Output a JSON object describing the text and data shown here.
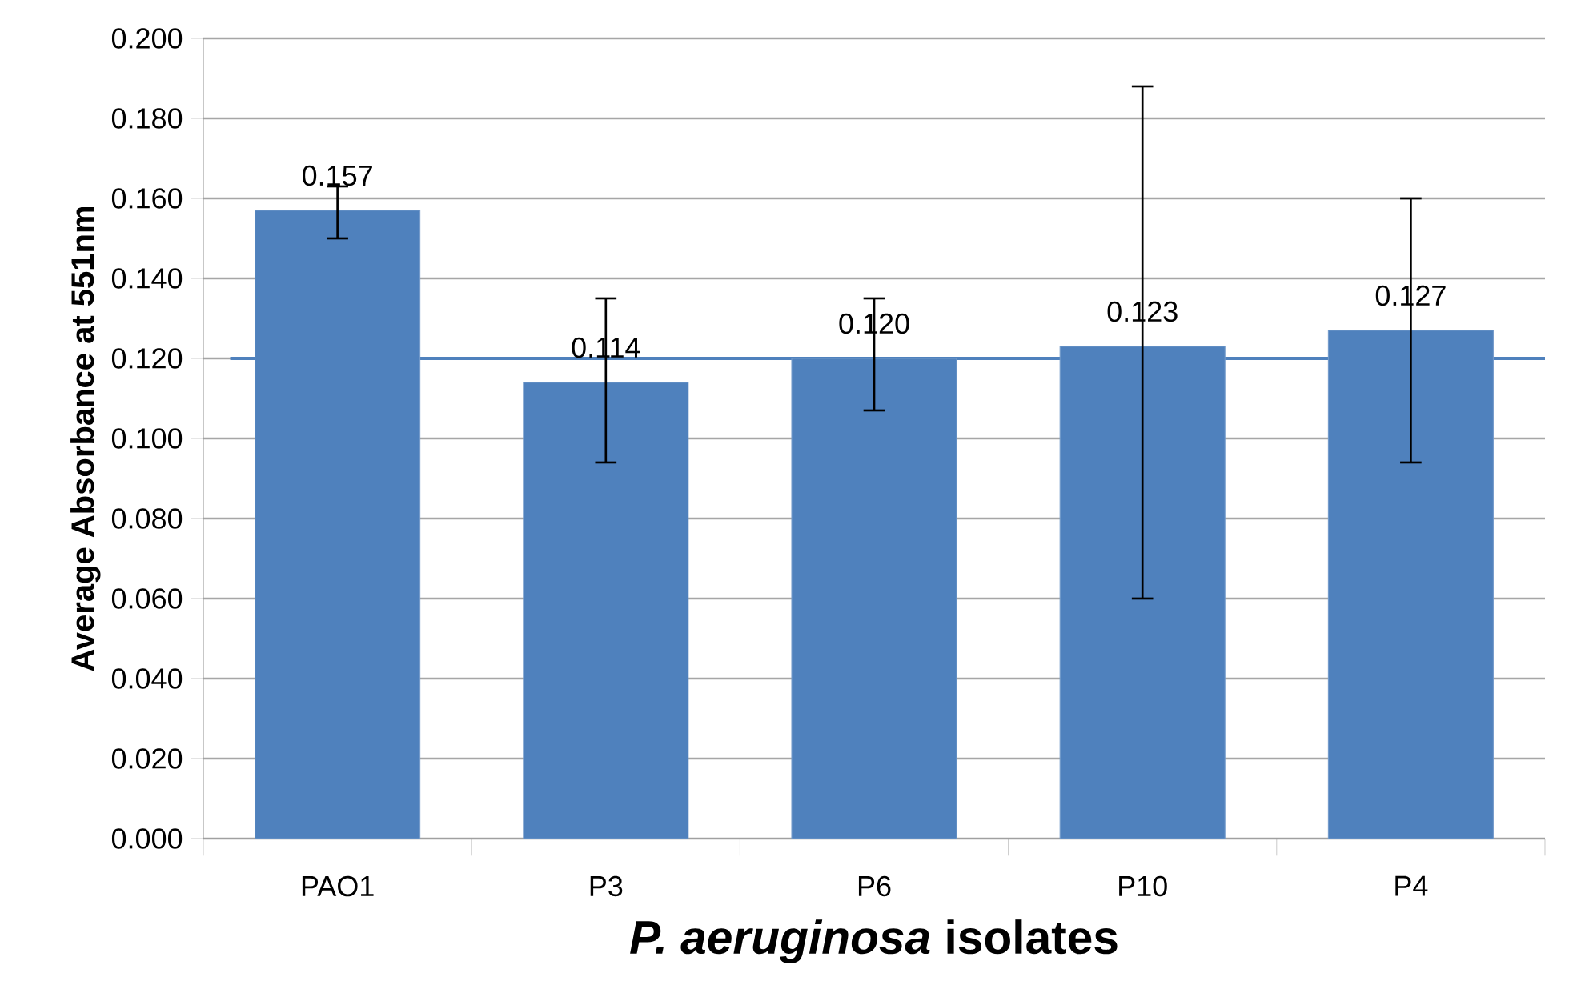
{
  "chart_data": {
    "type": "bar",
    "xlabel": "*P. aeruginosa* isolates",
    "ylabel": "Average Absorbance at 551nm",
    "categories": [
      "PAO1",
      "P3",
      "P6",
      "P10",
      "P4"
    ],
    "values": [
      0.157,
      0.114,
      0.12,
      0.123,
      0.127
    ],
    "errors": [
      [
        0.15,
        0.163
      ],
      [
        0.094,
        0.135
      ],
      [
        0.107,
        0.135
      ],
      [
        0.06,
        0.188
      ],
      [
        0.094,
        0.16
      ]
    ],
    "color": "#4f81bd",
    "value_labels": [
      "0.157",
      "0.114",
      "0.120",
      "0.123",
      "0.127"
    ],
    "ylim": [
      0,
      0.2
    ],
    "yticks": [
      {
        "value": 0,
        "label": "0.000"
      },
      {
        "value": 0.02,
        "label": "0.020"
      },
      {
        "value": 0.04,
        "label": "0.040"
      },
      {
        "value": 0.06,
        "label": "0.060"
      },
      {
        "value": 0.08,
        "label": "0.080"
      },
      {
        "value": 0.1,
        "label": "0.100"
      },
      {
        "value": 0.12,
        "label": "0.120"
      },
      {
        "value": 0.14,
        "label": "0.140"
      },
      {
        "value": 0.16,
        "label": "0.160"
      },
      {
        "value": 0.18,
        "label": "0.180"
      },
      {
        "value": 0.2,
        "label": "0.200"
      }
    ],
    "ref_lines": [
      {
        "axis": "y",
        "value": 0.12,
        "color": "#4f81bd"
      }
    ],
    "grid": "y"
  }
}
